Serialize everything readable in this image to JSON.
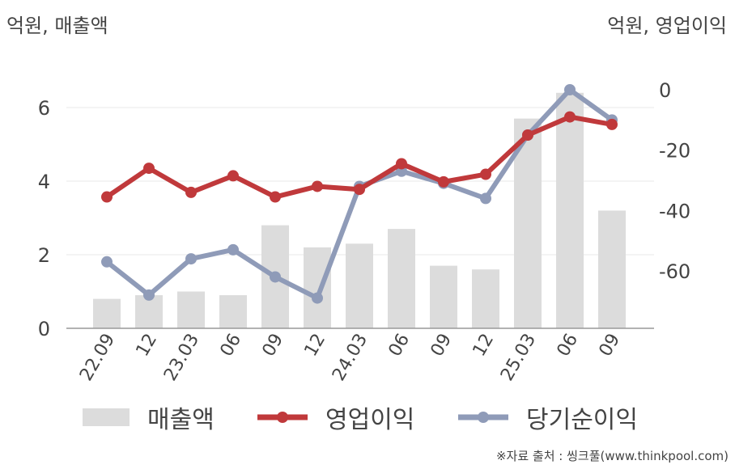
{
  "header": {
    "left_unit": "억원, 매출액",
    "right_unit": "억원, 영업이익"
  },
  "legend": {
    "revenue": "매출액",
    "operating": "영업이익",
    "net": "당기순이익"
  },
  "source": "※자료 출처 : 씽크풀(www.thinkpool.com)",
  "colors": {
    "bar": "#dcdcdc",
    "operating": "#c0393b",
    "net": "#8f9bb8",
    "axis": "#999999",
    "grid": "#e9e9e9"
  },
  "chart_data": {
    "type": "bar+line",
    "categories": [
      "22.09",
      "12",
      "23.03",
      "06",
      "09",
      "12",
      "24.03",
      "06",
      "09",
      "12",
      "25.03",
      "06",
      "09"
    ],
    "left_axis": {
      "ylim": [
        0,
        7
      ],
      "ticks": [
        0,
        2,
        4,
        6
      ]
    },
    "right_axis": {
      "ylim": [
        -80,
        5
      ],
      "ticks": [
        0,
        -20,
        -40,
        -60
      ]
    },
    "series": [
      {
        "name": "매출액",
        "type": "bar",
        "axis": "left",
        "values": [
          0.8,
          0.9,
          1.0,
          0.9,
          2.8,
          2.2,
          2.3,
          2.7,
          1.7,
          1.6,
          5.7,
          6.4,
          3.2
        ]
      },
      {
        "name": "영업이익",
        "type": "line",
        "axis": "right",
        "values": [
          -35.5,
          -26,
          -34,
          -28.5,
          -35.5,
          -32,
          -33,
          -24.5,
          -30.5,
          -28,
          -15,
          -9,
          -11.5
        ]
      },
      {
        "name": "당기순이익",
        "type": "line",
        "axis": "right",
        "values": [
          -57,
          -68,
          -56,
          -53,
          -62,
          -69,
          -32,
          -27,
          -31,
          -36,
          -15,
          0,
          -10
        ]
      }
    ],
    "grid": true,
    "legend_position": "bottom"
  }
}
